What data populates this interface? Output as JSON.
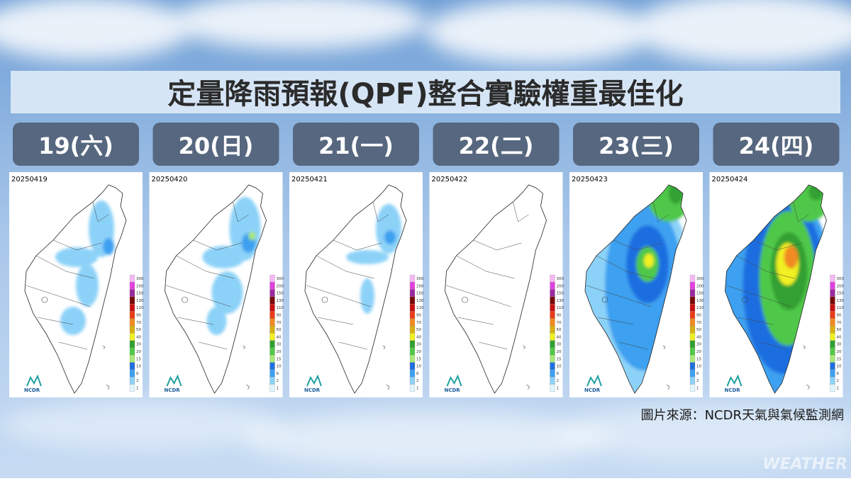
{
  "title": "定量降雨預報(QPF)整合實驗權重最佳化",
  "panels": [
    {
      "day": "19(六)",
      "date": "20250419"
    },
    {
      "day": "20(日)",
      "date": "20250420"
    },
    {
      "day": "21(一)",
      "date": "20250421"
    },
    {
      "day": "22(二)",
      "date": "20250422"
    },
    {
      "day": "23(三)",
      "date": "20250423"
    },
    {
      "day": "24(四)",
      "date": "20250424"
    }
  ],
  "legend_levels": [
    300,
    200,
    150,
    130,
    110,
    90,
    70,
    50,
    40,
    30,
    20,
    15,
    10,
    6,
    2,
    1
  ],
  "logo": "NCDR",
  "source": "圖片來源：NCDR天氣與氣候監測網",
  "watermark": "WEATHER"
}
